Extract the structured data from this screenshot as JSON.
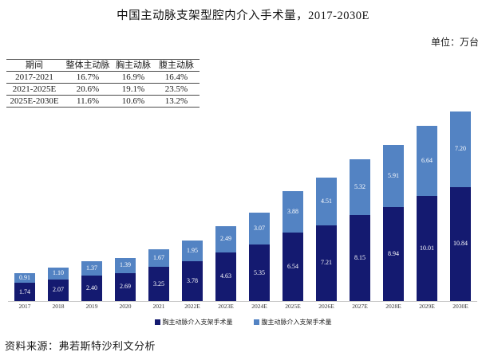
{
  "title": "中国主动脉支架型腔内介入手术量，2017-2030E",
  "unit_label": "单位：万台",
  "cagr_table": {
    "headers": [
      "期间",
      "整体主动脉",
      "胸主动脉",
      "腹主动脉"
    ],
    "rows": [
      [
        "2017-2021",
        "16.7%",
        "16.9%",
        "16.4%"
      ],
      [
        "2021-2025E",
        "20.6%",
        "19.1%",
        "23.5%"
      ],
      [
        "2025E-2030E",
        "11.6%",
        "10.6%",
        "13.2%"
      ]
    ]
  },
  "chart_data": {
    "type": "bar",
    "stacked": true,
    "title": "中国主动脉支架型腔内介入手术量，2017-2030E",
    "unit": "万台",
    "categories": [
      "2017",
      "2018",
      "2019",
      "2020",
      "2021",
      "2022E",
      "2023E",
      "2024E",
      "2025E",
      "2026E",
      "2027E",
      "2028E",
      "2029E",
      "2030E"
    ],
    "series": [
      {
        "name": "胸主动脉介入支架手术量",
        "color": "#141a70",
        "values": [
          1.74,
          2.07,
          2.4,
          2.69,
          3.25,
          3.78,
          4.63,
          5.35,
          6.54,
          7.21,
          8.15,
          8.94,
          10.01,
          10.84
        ]
      },
      {
        "name": "腹主动脉介入支架手术量",
        "color": "#5383c3",
        "values": [
          0.91,
          1.1,
          1.37,
          1.39,
          1.67,
          1.95,
          2.49,
          3.07,
          3.88,
          4.51,
          5.32,
          5.91,
          6.64,
          7.2
        ]
      }
    ],
    "ylim": [
      0,
      19
    ],
    "grid": false,
    "value_labels": true,
    "legend_position": "bottom"
  },
  "source": "资料来源：弗若斯特沙利文分析"
}
